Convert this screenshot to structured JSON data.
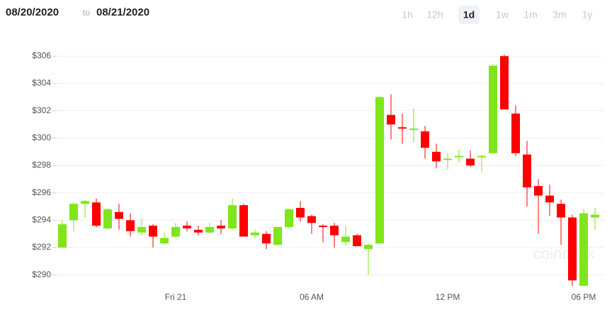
{
  "header": {
    "from": "08/20/2020",
    "to_word": "to",
    "to": "08/21/2020",
    "ranges": [
      "1h",
      "12h",
      "1d",
      "1w",
      "1m",
      "3m",
      "1y"
    ],
    "selected": 2
  },
  "watermark": "coindesk",
  "chart_data": {
    "type": "candlestick",
    "categories": [
      null,
      null,
      null,
      null,
      null,
      null,
      null,
      null,
      null,
      null,
      "Fri 21",
      null,
      null,
      null,
      null,
      null,
      null,
      null,
      null,
      null,
      null,
      null,
      "06 AM",
      null,
      null,
      null,
      null,
      null,
      null,
      null,
      null,
      null,
      null,
      null,
      "12 PM",
      null,
      null,
      null,
      null,
      null,
      null,
      null,
      null,
      null,
      null,
      null,
      "06 PM",
      null
    ],
    "open": [
      292.0,
      294.0,
      295.2,
      295.3,
      293.4,
      294.6,
      294.0,
      293.1,
      293.6,
      292.3,
      292.8,
      293.6,
      293.3,
      293.1,
      293.6,
      293.4,
      295.1,
      292.9,
      293.0,
      292.2,
      293.5,
      294.9,
      294.3,
      293.6,
      293.6,
      292.4,
      292.9,
      291.9,
      292.3,
      301.7,
      300.8,
      300.6,
      300.5,
      299.0,
      298.4,
      298.6,
      298.5,
      298.6,
      298.9,
      306.0,
      301.8,
      298.8,
      296.5,
      295.8,
      295.2,
      294.2,
      289.2,
      294.2
    ],
    "high": [
      294.0,
      295.3,
      295.5,
      295.6,
      294.9,
      295.2,
      294.5,
      294.1,
      293.7,
      293.1,
      293.8,
      293.9,
      293.6,
      293.8,
      294.0,
      295.6,
      295.2,
      293.3,
      293.2,
      293.5,
      294.9,
      295.4,
      294.4,
      293.7,
      293.8,
      293.6,
      293.0,
      292.3,
      303.1,
      303.2,
      301.8,
      302.2,
      300.9,
      299.6,
      298.9,
      299.2,
      299.1,
      298.8,
      305.4,
      306.1,
      302.4,
      299.8,
      297.0,
      296.6,
      295.5,
      294.4,
      294.8,
      294.9
    ],
    "low": [
      292.0,
      293.2,
      294.2,
      293.5,
      293.3,
      293.3,
      292.8,
      292.9,
      292.0,
      292.2,
      292.7,
      293.2,
      292.9,
      293.0,
      293.0,
      293.3,
      292.8,
      292.7,
      291.9,
      292.2,
      293.4,
      293.9,
      293.0,
      292.4,
      292.0,
      292.2,
      292.1,
      290.0,
      292.3,
      299.9,
      299.6,
      299.7,
      298.5,
      297.8,
      297.7,
      298.2,
      297.9,
      297.5,
      298.9,
      302.1,
      298.7,
      295.0,
      293.0,
      294.3,
      292.2,
      289.2,
      289.2,
      293.3
    ],
    "close": [
      293.7,
      295.2,
      295.4,
      293.6,
      294.8,
      294.1,
      293.2,
      293.5,
      292.8,
      292.7,
      293.5,
      293.4,
      293.1,
      293.5,
      293.4,
      295.1,
      292.8,
      293.1,
      292.3,
      293.5,
      294.8,
      294.2,
      293.8,
      293.5,
      292.9,
      292.8,
      292.1,
      292.2,
      303.0,
      301.0,
      300.7,
      300.7,
      299.3,
      298.3,
      298.5,
      298.7,
      298.0,
      298.7,
      305.3,
      302.1,
      298.9,
      296.4,
      295.8,
      295.3,
      294.2,
      289.6,
      294.5,
      294.4
    ],
    "up_color": "#7ee619",
    "down_color": "#ff0000",
    "ylim": [
      288.9,
      307.0
    ],
    "yticks": [
      {
        "value": 290,
        "label": "$290"
      },
      {
        "value": 292,
        "label": "$292"
      },
      {
        "value": 294,
        "label": "$294"
      },
      {
        "value": 296,
        "label": "$296"
      },
      {
        "value": 298,
        "label": "$298"
      },
      {
        "value": 300,
        "label": "$300"
      },
      {
        "value": 302,
        "label": "$302"
      },
      {
        "value": 304,
        "label": "$304"
      },
      {
        "value": 306,
        "label": "$306"
      }
    ],
    "grid": true
  }
}
